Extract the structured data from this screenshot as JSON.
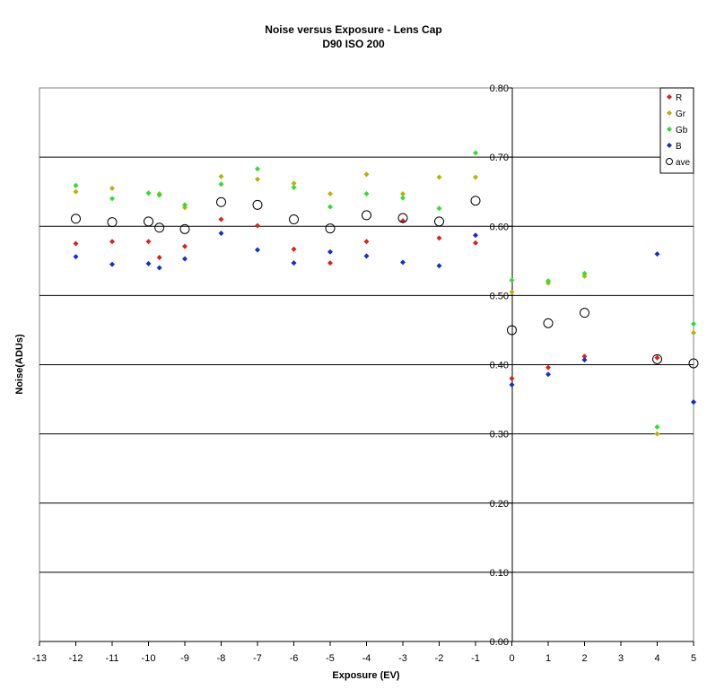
{
  "chart_data": {
    "type": "scatter",
    "title": "Noise versus Exposure - Lens Cap",
    "subtitle": "D90 ISO 200",
    "xlabel": "Exposure (EV)",
    "ylabel": "Noise(ADUs)",
    "xlim": [
      -13,
      5
    ],
    "ylim": [
      0.0,
      0.8
    ],
    "x_ticks": [
      "-13",
      "-12",
      "-11",
      "-10",
      "-9",
      "-8",
      "-7",
      "-6",
      "-5",
      "-4",
      "-3",
      "-2",
      "-1",
      "0",
      "1",
      "2",
      "3",
      "4",
      "5"
    ],
    "y_ticks": [
      "0.00",
      "0.10",
      "0.20",
      "0.30",
      "0.40",
      "0.50",
      "0.60",
      "0.70",
      "0.80"
    ],
    "grid": "horizontal",
    "legend_position": "top-right",
    "series": [
      {
        "name": "R",
        "color": "#e0201c",
        "marker": "diamond",
        "x": [
          -12,
          -11,
          -10,
          -9.7,
          -9,
          -8,
          -7,
          -6,
          -5,
          -4,
          -3,
          -2,
          -1,
          0,
          1,
          2,
          4,
          5
        ],
        "y": [
          0.575,
          0.578,
          0.578,
          0.555,
          0.571,
          0.61,
          0.601,
          0.567,
          0.547,
          0.578,
          0.608,
          0.583,
          0.576,
          0.38,
          0.396,
          0.412,
          0.41,
          0.346
        ]
      },
      {
        "name": "Gr",
        "color": "#b8b400",
        "marker": "diamond",
        "x": [
          -12,
          -11,
          -10,
          -9.7,
          -9,
          -8,
          -7,
          -6,
          -5,
          -4,
          -3,
          -2,
          -1,
          0,
          1,
          2,
          4,
          5
        ],
        "y": [
          0.65,
          0.655,
          0.648,
          0.647,
          0.627,
          0.672,
          0.668,
          0.662,
          0.647,
          0.675,
          0.647,
          0.671,
          0.671,
          0.505,
          0.518,
          0.528,
          0.3,
          0.446
        ]
      },
      {
        "name": "Gb",
        "color": "#2ee02e",
        "marker": "diamond",
        "x": [
          -12,
          -11,
          -10,
          -9.7,
          -9,
          -8,
          -7,
          -6,
          -5,
          -4,
          -3,
          -2,
          -1,
          0,
          1,
          2,
          4,
          5
        ],
        "y": [
          0.659,
          0.64,
          0.648,
          0.645,
          0.631,
          0.661,
          0.683,
          0.656,
          0.628,
          0.647,
          0.641,
          0.626,
          0.706,
          0.522,
          0.521,
          0.532,
          0.31,
          0.459
        ]
      },
      {
        "name": "B",
        "color": "#1030d0",
        "marker": "diamond",
        "x": [
          -12,
          -11,
          -10,
          -9.7,
          -9,
          -8,
          -7,
          -6,
          -5,
          -4,
          -3,
          -2,
          -1,
          0,
          1,
          2,
          4,
          5
        ],
        "y": [
          0.556,
          0.545,
          0.546,
          0.54,
          0.553,
          0.59,
          0.566,
          0.547,
          0.563,
          0.557,
          0.548,
          0.543,
          0.587,
          0.371,
          0.386,
          0.407,
          0.56,
          0.346
        ]
      },
      {
        "name": "ave",
        "color": "#000000",
        "marker": "open-circle",
        "x": [
          -12,
          -11,
          -10,
          -9.7,
          -9,
          -8,
          -7,
          -6,
          -5,
          -4,
          -3,
          -2,
          -1,
          0,
          1,
          2,
          4,
          5
        ],
        "y": [
          0.611,
          0.606,
          0.607,
          0.598,
          0.596,
          0.635,
          0.631,
          0.61,
          0.597,
          0.616,
          0.612,
          0.607,
          0.637,
          0.45,
          0.46,
          0.475,
          0.408,
          0.402
        ]
      }
    ]
  }
}
